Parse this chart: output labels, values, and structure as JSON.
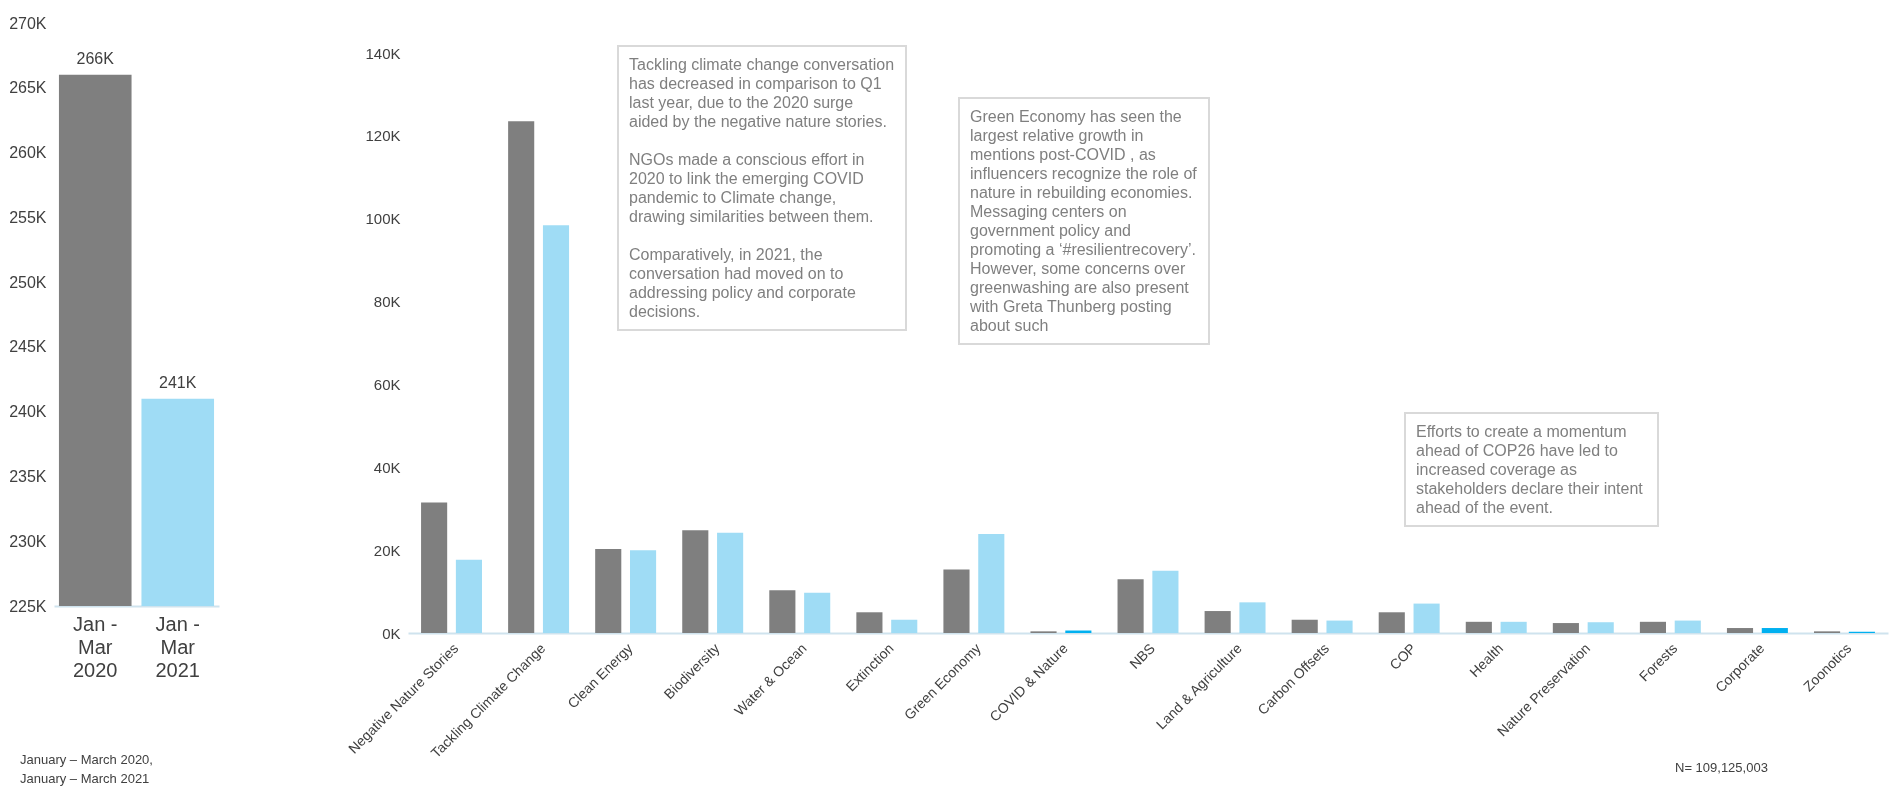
{
  "chart_data": [
    {
      "type": "bar",
      "categories": [
        "Jan - Mar 2020",
        "Jan - Mar 2021"
      ],
      "values": [
        266000,
        241000
      ],
      "colors": [
        "#7f7f7f",
        "#9fdcf5"
      ],
      "value_labels": [
        "266K",
        "241K"
      ],
      "ylim": [
        225000,
        270000
      ],
      "yticks": [
        {
          "value": 225000,
          "label": "225K"
        },
        {
          "value": 230000,
          "label": "230K"
        },
        {
          "value": 235000,
          "label": "235K"
        },
        {
          "value": 240000,
          "label": "240K"
        },
        {
          "value": 245000,
          "label": "245K"
        },
        {
          "value": 250000,
          "label": "250K"
        },
        {
          "value": 255000,
          "label": "255K"
        },
        {
          "value": 260000,
          "label": "260K"
        },
        {
          "value": 265000,
          "label": "265K"
        },
        {
          "value": 270000,
          "label": "270K"
        }
      ],
      "annotations": [
        "January – March 2020, January – March 2021"
      ]
    },
    {
      "type": "bar",
      "categories": [
        "Negative Nature Stories",
        "Tackling Climate Change",
        "Clean Energy",
        "Biodiversity",
        "Water & Ocean",
        "Extinction",
        "Green Economy",
        "COVID & Nature",
        "NBS",
        "Land & Agriculture",
        "Carbon Offsets",
        "COP",
        "Health",
        "Nature Preservation",
        "Forests",
        "Corporate",
        "Zoonotics"
      ],
      "series": [
        {
          "color": "#7f7f7f",
          "values": [
            31500,
            123500,
            20300,
            24800,
            10300,
            5000,
            15300,
            400,
            13000,
            5300,
            3200,
            5000,
            2700,
            2400,
            2700,
            1200,
            400
          ]
        },
        {
          "colors": [
            "#9fdcf5",
            "#9fdcf5",
            "#9fdcf5",
            "#9fdcf5",
            "#9fdcf5",
            "#9fdcf5",
            "#9fdcf5",
            "#00b0f0",
            "#9fdcf5",
            "#9fdcf5",
            "#9fdcf5",
            "#9fdcf5",
            "#9fdcf5",
            "#9fdcf5",
            "#9fdcf5",
            "#00b0f0",
            "#00b0f0"
          ],
          "values": [
            17700,
            98400,
            20000,
            24200,
            9700,
            3200,
            23900,
            600,
            15000,
            7400,
            3000,
            7100,
            2700,
            2600,
            3000,
            1200,
            300
          ]
        }
      ],
      "ylim": [
        0,
        140000
      ],
      "yticks": [
        {
          "value": 0,
          "label": "0K"
        },
        {
          "value": 20000,
          "label": "20K"
        },
        {
          "value": 40000,
          "label": "40K"
        },
        {
          "value": 60000,
          "label": "60K"
        },
        {
          "value": 80000,
          "label": "80K"
        },
        {
          "value": 100000,
          "label": "100K"
        },
        {
          "value": 120000,
          "label": "120K"
        },
        {
          "value": 140000,
          "label": "140K"
        }
      ],
      "annotations": [
        "Tackling climate change conversation has decreased in comparison to Q1 last year, due to the 2020 surge aided by the negative nature stories.\n\nNGOs made a conscious effort in 2020 to link the emerging COVID pandemic to Climate change, drawing similarities between them.\n\nComparatively, in 2021, the conversation had moved on to addressing policy and corporate decisions.",
        "Green Economy has seen the largest relative growth in mentions post-COVID , as influencers recognize the role of nature in rebuilding economies. Messaging centers on government policy and promoting a ‘#resilientrecovery’. However, some concerns over greenwashing are also present with Greta Thunberg posting about such",
        "Efforts to create a momentum ahead of COP26 have led to increased coverage as stakeholders declare their intent ahead of the event.",
        "N= 109,125,003"
      ]
    }
  ]
}
